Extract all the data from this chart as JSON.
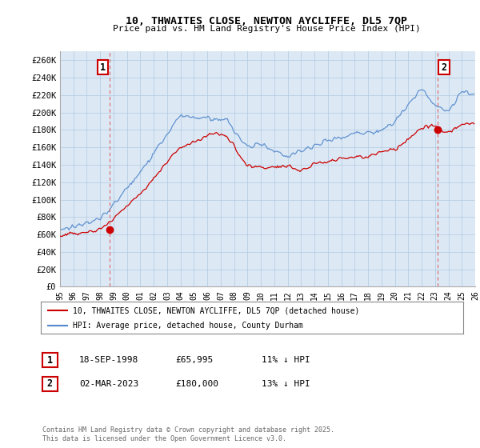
{
  "title": "10, THWAITES CLOSE, NEWTON AYCLIFFE, DL5 7QP",
  "subtitle": "Price paid vs. HM Land Registry's House Price Index (HPI)",
  "ylabel_ticks": [
    "£0",
    "£20K",
    "£40K",
    "£60K",
    "£80K",
    "£100K",
    "£120K",
    "£140K",
    "£160K",
    "£180K",
    "£200K",
    "£220K",
    "£240K",
    "£260K"
  ],
  "ytick_values": [
    0,
    20000,
    40000,
    60000,
    80000,
    100000,
    120000,
    140000,
    160000,
    180000,
    200000,
    220000,
    240000,
    260000
  ],
  "ylim": [
    0,
    270000
  ],
  "xlabel_years": [
    "95",
    "96",
    "97",
    "98",
    "99",
    "00",
    "01",
    "02",
    "03",
    "04",
    "05",
    "06",
    "07",
    "08",
    "09",
    "10",
    "11",
    "12",
    "13",
    "14",
    "15",
    "16",
    "17",
    "18",
    "19",
    "20",
    "21",
    "22",
    "23",
    "24",
    "25",
    "26"
  ],
  "legend_entries": [
    "10, THWAITES CLOSE, NEWTON AYCLIFFE, DL5 7QP (detached house)",
    "HPI: Average price, detached house, County Durham"
  ],
  "legend_colors": [
    "#cc0000",
    "#6699cc"
  ],
  "sale1_year": 1998.71,
  "sale1_price": 65995,
  "sale2_year": 2023.17,
  "sale2_price": 180000,
  "footnote": "Contains HM Land Registry data © Crown copyright and database right 2025.\nThis data is licensed under the Open Government Licence v3.0.",
  "table_rows": [
    {
      "num": "1",
      "date": "18-SEP-1998",
      "price": "£65,995",
      "hpi": "11% ↓ HPI"
    },
    {
      "num": "2",
      "date": "02-MAR-2023",
      "price": "£180,000",
      "hpi": "13% ↓ HPI"
    }
  ],
  "background_color": "#ffffff",
  "plot_bg_color": "#dce9f5",
  "grid_color": "#b0c8e0",
  "red_line_color": "#cc0000",
  "blue_line_color": "#5588cc",
  "vline_color": "#dd6666"
}
